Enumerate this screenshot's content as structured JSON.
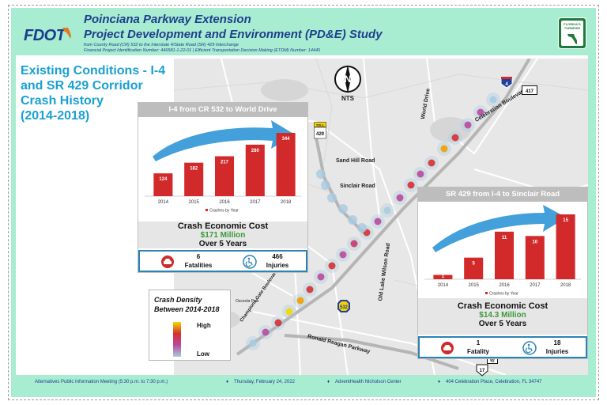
{
  "header": {
    "logo_text": "FDOT",
    "title_line1": "Poinciana Parkway Extension",
    "title_line2": "Project Development and Environment (PD&E) Study",
    "subtitle_line1": "from County Road (CR) 532 to the Interstate 4/State Road (SR) 429 Interchange",
    "subtitle_line2": "Financial Project Identification Number: 446581-1-22-01 | Efficient Transportation Decision Making (ETDM) Number: 14445",
    "turnpike_text": "FLORIDA'S TURNPIKE"
  },
  "heading": {
    "line1": "Existing Conditions - I-4",
    "line2": "and SR 429 Corridor",
    "line3": "Crash History",
    "line4": "(2014-2018)"
  },
  "map": {
    "north_letter": "N",
    "scale_text": "NTS",
    "labels": {
      "sand_hill": "Sand Hill Road",
      "sinclair": "Sinclair Road",
      "world_drive": "World Drive",
      "celebration": "Celebration Boulevard",
      "old_lake_wilson": "Old Lake Wilson Road",
      "champions_gate": "Champions Gate Boulevard",
      "ronald_reagan": "Ronald Reagan Parkway",
      "osceola": "Osceola Polk"
    },
    "shields": {
      "i4": "4",
      "sr417": "417",
      "sr429": "429",
      "cr532": "532",
      "us17": "17",
      "sr92": "92",
      "toll_label": "TOLL"
    }
  },
  "card_i4": {
    "header": "I-4 from CR 532 to World Drive",
    "legend_label": "Crashes by Year",
    "cost_title": "Crash Economic Cost",
    "cost_value": "$171 Million",
    "cost_years": "Over 5 Years",
    "fatalities_num": "6",
    "fatalities_label": "Fatalities",
    "injuries_num": "466",
    "injuries_label": "Injuries"
  },
  "card_sr429": {
    "header": "SR 429 from I-4 to Sinclair Road",
    "legend_label": "Crashes by Year",
    "cost_title": "Crash Economic Cost",
    "cost_value": "$14.3 Million",
    "cost_years": "Over 5 Years",
    "fatalities_num": "1",
    "fatalities_label": "Fatality",
    "injuries_num": "18",
    "injuries_label": "Injuries"
  },
  "chart_data": [
    {
      "type": "bar",
      "title": "",
      "categories": [
        "2014",
        "2015",
        "2016",
        "2017",
        "2018"
      ],
      "series": [
        {
          "name": "Crashes by Year",
          "values": [
            124,
            182,
            217,
            280,
            344
          ]
        }
      ],
      "ylim": [
        0,
        344
      ],
      "legend": "bottom",
      "bar_color": "#d22a2a"
    },
    {
      "type": "bar",
      "title": "",
      "categories": [
        "2014",
        "2015",
        "2016",
        "2017",
        "2018"
      ],
      "series": [
        {
          "name": "Crashes by Year",
          "values": [
            1,
            5,
            11,
            10,
            15
          ]
        }
      ],
      "ylim": [
        0,
        15
      ],
      "legend": "bottom",
      "bar_color": "#d22a2a"
    }
  ],
  "legend": {
    "title_line1": "Crash Density",
    "title_line2": "Between 2014-2018",
    "high": "High",
    "low": "Low"
  },
  "footer": {
    "meeting": "Alternatives Public Information Meeting (5:30 p.m. to 7:30 p.m.)",
    "date": "Thursday, February 24, 2022",
    "venue": "AdventHealth Nicholson Center",
    "address": "404 Celebration Place, Celebration, FL 34747"
  },
  "colors": {
    "panel_bg": "#a8ecd2",
    "title_blue": "#1e3f8c",
    "heading_cyan": "#1aa0d2",
    "bar_red": "#d22a2a",
    "arrow_blue": "#3a9bd8",
    "stat_border": "#2a84b5",
    "money_green": "#3a9a3a"
  }
}
